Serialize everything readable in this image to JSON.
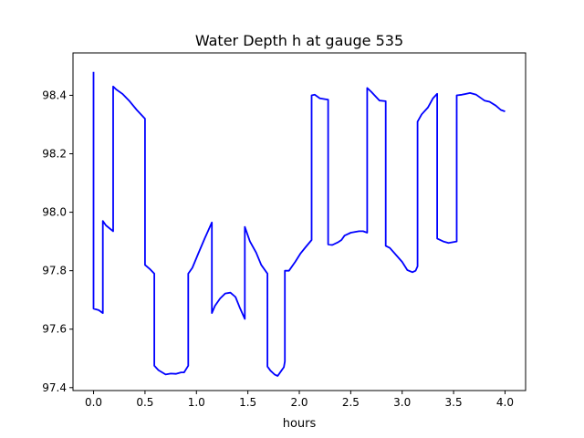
{
  "chart_data": {
    "type": "line",
    "title": "Water Depth h at gauge 535",
    "xlabel": "hours",
    "ylabel": "",
    "xlim": [
      -0.2,
      4.2
    ],
    "ylim": [
      97.39,
      98.545
    ],
    "xticks": [
      0.0,
      0.5,
      1.0,
      1.5,
      2.0,
      2.5,
      3.0,
      3.5,
      4.0
    ],
    "xtick_labels": [
      "0.0",
      "0.5",
      "1.0",
      "1.5",
      "2.0",
      "2.5",
      "3.0",
      "3.5",
      "4.0"
    ],
    "yticks": [
      97.4,
      97.6,
      97.8,
      98.0,
      98.2,
      98.4
    ],
    "ytick_labels": [
      "97.4",
      "97.6",
      "97.8",
      "98.0",
      "98.2",
      "98.4"
    ],
    "grid": false,
    "legend": "none",
    "series": [
      {
        "color": "#0000ff",
        "x": [
          0.0,
          0.0,
          0.0,
          0.05,
          0.09,
          0.09,
          0.12,
          0.19,
          0.19,
          0.22,
          0.28,
          0.35,
          0.42,
          0.5,
          0.5,
          0.55,
          0.59,
          0.59,
          0.63,
          0.7,
          0.75,
          0.8,
          0.85,
          0.88,
          0.92,
          0.92,
          0.96,
          1.02,
          1.08,
          1.15,
          1.15,
          1.18,
          1.23,
          1.28,
          1.33,
          1.38,
          1.42,
          1.47,
          1.47,
          1.52,
          1.58,
          1.63,
          1.69,
          1.69,
          1.72,
          1.76,
          1.79,
          1.82,
          1.85,
          1.86,
          1.86,
          1.9,
          1.96,
          2.01,
          2.06,
          2.12,
          2.12,
          2.15,
          2.2,
          2.28,
          2.28,
          2.32,
          2.38,
          2.41,
          2.44,
          2.5,
          2.58,
          2.62,
          2.66,
          2.66,
          2.7,
          2.78,
          2.84,
          2.84,
          2.88,
          2.95,
          3.0,
          3.05,
          3.1,
          3.13,
          3.15,
          3.15,
          3.19,
          3.25,
          3.3,
          3.34,
          3.34,
          3.4,
          3.45,
          3.53,
          3.53,
          3.58,
          3.66,
          3.72,
          3.8,
          3.85,
          3.91,
          3.96,
          4.0
        ],
        "y": [
          98.48,
          97.98,
          97.67,
          97.665,
          97.655,
          97.97,
          97.955,
          97.935,
          98.43,
          98.42,
          98.405,
          98.38,
          98.35,
          98.32,
          97.82,
          97.805,
          97.79,
          97.475,
          97.46,
          97.445,
          97.448,
          97.447,
          97.452,
          97.452,
          97.475,
          97.79,
          97.81,
          97.86,
          97.91,
          97.965,
          97.655,
          97.68,
          97.705,
          97.722,
          97.725,
          97.71,
          97.675,
          97.635,
          97.95,
          97.9,
          97.862,
          97.82,
          97.79,
          97.472,
          97.458,
          97.445,
          97.44,
          97.455,
          97.47,
          97.49,
          97.8,
          97.8,
          97.83,
          97.858,
          97.88,
          97.905,
          98.4,
          98.402,
          98.39,
          98.385,
          97.89,
          97.888,
          97.898,
          97.905,
          97.92,
          97.93,
          97.935,
          97.935,
          97.93,
          98.425,
          98.412,
          98.382,
          98.38,
          97.885,
          97.878,
          97.85,
          97.83,
          97.802,
          97.795,
          97.8,
          97.815,
          98.31,
          98.335,
          98.358,
          98.39,
          98.405,
          97.91,
          97.9,
          97.895,
          97.9,
          98.4,
          98.402,
          98.408,
          98.402,
          98.382,
          98.378,
          98.365,
          98.35,
          98.345
        ]
      }
    ]
  }
}
